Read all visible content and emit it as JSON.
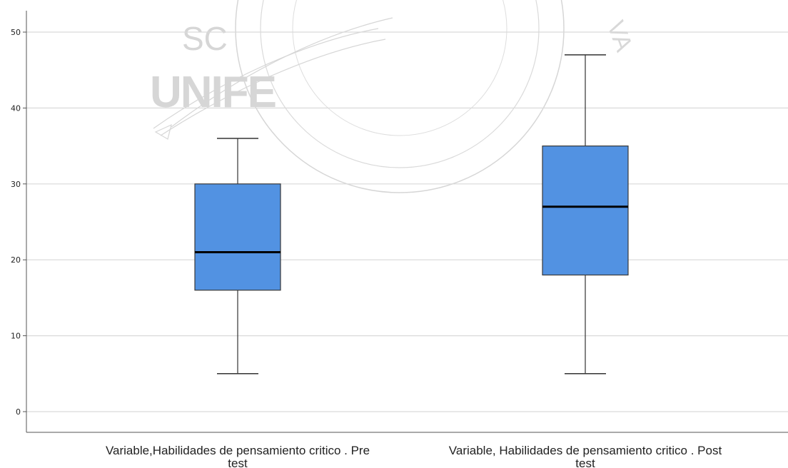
{
  "chart_data": {
    "type": "box",
    "title": "",
    "xlabel": "",
    "ylabel": "",
    "ylim": [
      0,
      50
    ],
    "yticks": [
      0,
      10,
      20,
      30,
      40,
      50
    ],
    "grid": true,
    "series": [
      {
        "label_lines": [
          "Variable,Habilidades de pensamiento critico . Pre",
          "test"
        ],
        "min": 5,
        "q1": 16,
        "median": 21,
        "q3": 30,
        "max": 36
      },
      {
        "label_lines": [
          "Variable, Habilidades de pensamiento critico . Post",
          "test"
        ],
        "min": 5,
        "q1": 18,
        "median": 27,
        "q3": 35,
        "max": 47
      }
    ],
    "colors": {
      "box_fill": "#5292e2",
      "box_stroke": "#3a3a3a",
      "median": "#000000",
      "whisker": "#333333",
      "grid": "#d9d9d9",
      "axis": "#555555"
    }
  },
  "watermark": {
    "text_top": "SC",
    "text_main": "UNIFE",
    "text_arc": "VA",
    "color": "#c8c8c8"
  }
}
